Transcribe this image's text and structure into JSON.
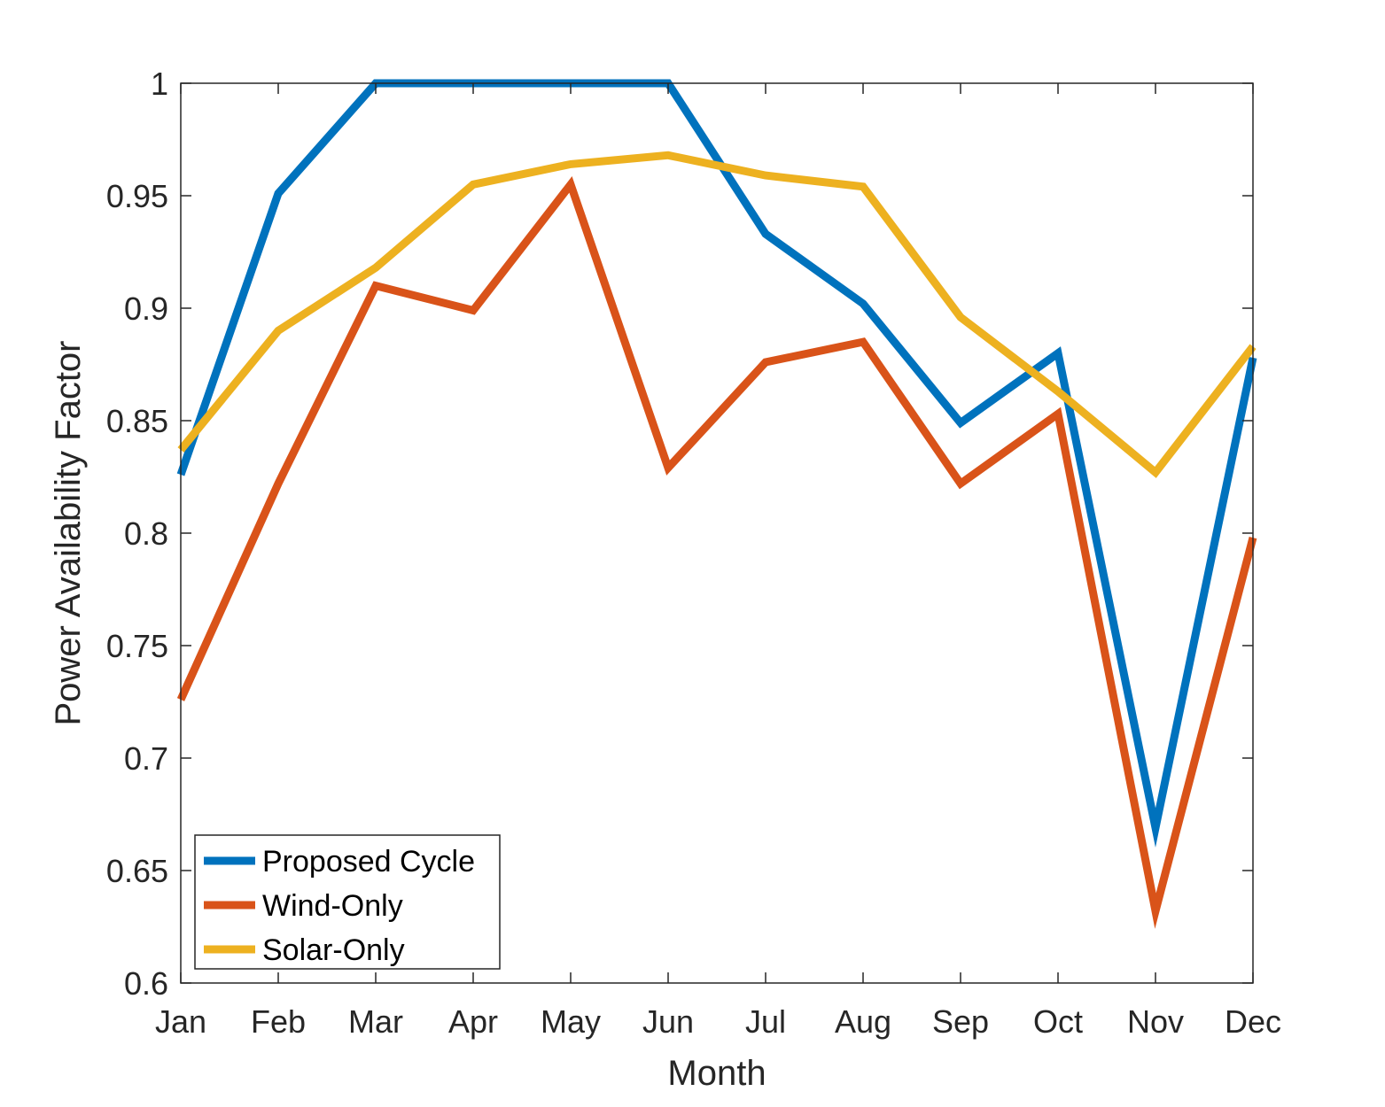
{
  "chart_data": {
    "type": "line",
    "title": "",
    "xlabel": "Month",
    "ylabel": "Power Availability Factor",
    "categories": [
      "Jan",
      "Feb",
      "Mar",
      "Apr",
      "May",
      "Jun",
      "Jul",
      "Aug",
      "Sep",
      "Oct",
      "Nov",
      "Dec"
    ],
    "ylim": [
      0.6,
      1
    ],
    "yticks": [
      "0.6",
      "0.65",
      "0.7",
      "0.75",
      "0.8",
      "0.85",
      "0.9",
      "0.95",
      "1"
    ],
    "grid": false,
    "legend_position": "bottom-left",
    "series": [
      {
        "name": "Proposed Cycle",
        "color": "#0072BD",
        "values": [
          0.826,
          0.951,
          1.0,
          1.0,
          1.0,
          1.0,
          0.933,
          0.902,
          0.849,
          0.88,
          0.669,
          0.878
        ]
      },
      {
        "name": "Wind-Only",
        "color": "#D95319",
        "values": [
          0.726,
          0.822,
          0.91,
          0.899,
          0.955,
          0.829,
          0.876,
          0.885,
          0.822,
          0.853,
          0.632,
          0.798
        ]
      },
      {
        "name": "Solar-Only",
        "color": "#EDB120",
        "values": [
          0.837,
          0.89,
          0.918,
          0.955,
          0.964,
          0.968,
          0.959,
          0.954,
          0.896,
          0.863,
          0.827,
          0.883
        ]
      }
    ]
  }
}
